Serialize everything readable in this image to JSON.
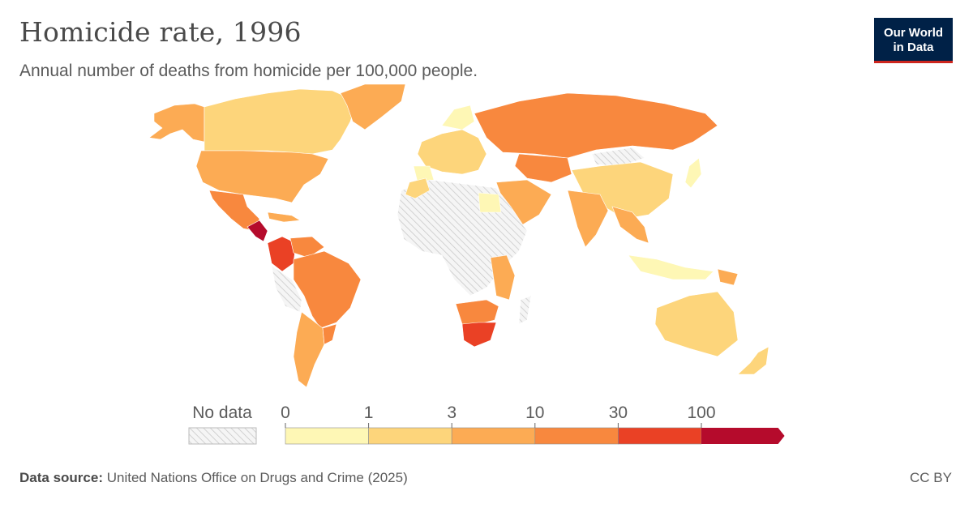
{
  "header": {
    "title": "Homicide rate, 1996",
    "subtitle": "Annual number of deaths from homicide per 100,000 people."
  },
  "logo": {
    "line1": "Our World",
    "line2": "in Data"
  },
  "legend": {
    "no_data_label": "No data",
    "ticks": [
      "0",
      "1",
      "3",
      "10",
      "30",
      "100"
    ],
    "bin_colors": [
      "#fef7b5",
      "#fdd57b",
      "#fcab54",
      "#f8883e",
      "#ea4125",
      "#b50b2c"
    ]
  },
  "map": {
    "colors": {
      "no_data": "#e6e6e6",
      "bin1": "#fef7b5",
      "bin2": "#fdd57b",
      "bin3": "#fcab54",
      "bin4": "#f8883e",
      "bin5": "#ea4125",
      "bin6": "#b50b2c"
    }
  },
  "footer": {
    "source_label": "Data source:",
    "source_text": "United Nations Office on Drugs and Crime (2025)",
    "license": "CC BY"
  }
}
